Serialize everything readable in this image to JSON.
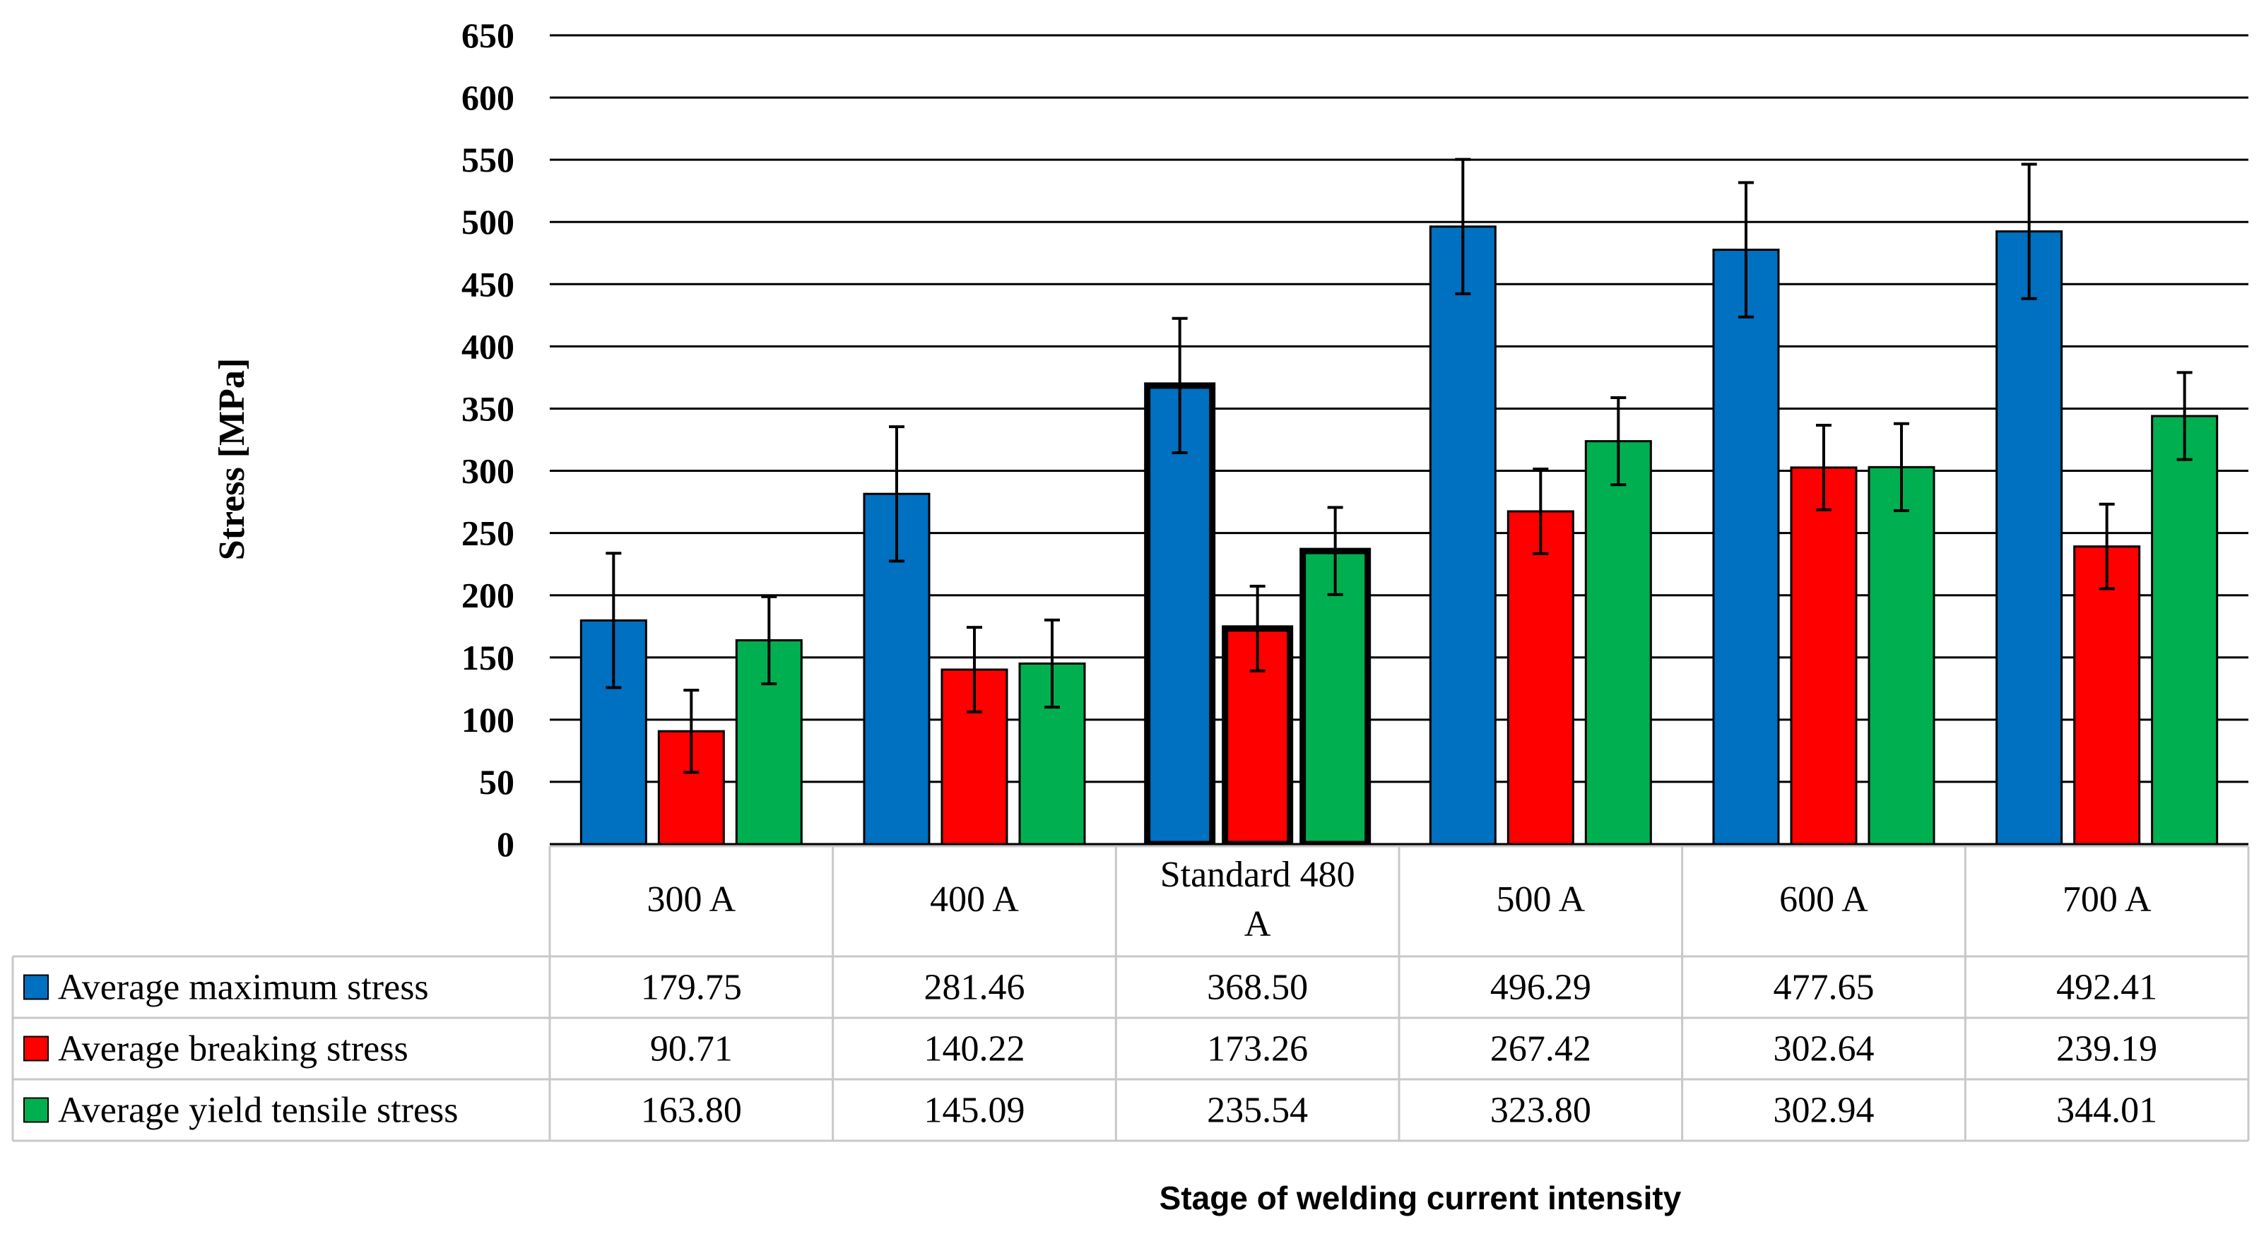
{
  "chart_data": {
    "type": "bar",
    "ylabel": "Stress [MPa]",
    "xlabel": "Stage of welding current intensity",
    "ylim": [
      0,
      650
    ],
    "yticks": [
      0,
      50,
      100,
      150,
      200,
      250,
      300,
      350,
      400,
      450,
      500,
      550,
      600,
      650
    ],
    "categories": [
      "300 A",
      "400 A",
      "Standard 480 A",
      "500 A",
      "600 A",
      "700 A"
    ],
    "highlighted_category": "Standard 480 A",
    "series": [
      {
        "name": "Average maximum stress",
        "color": "#0070C0",
        "values": [
          179.75,
          281.46,
          368.5,
          496.29,
          477.65,
          492.41
        ],
        "labels": [
          "179.75",
          "281.46",
          "368.50",
          "496.29",
          "477.65",
          "492.41"
        ],
        "error": [
          54,
          54,
          54,
          54,
          54,
          54
        ]
      },
      {
        "name": "Average breaking stress",
        "color": "#FF0000",
        "values": [
          90.71,
          140.22,
          173.26,
          267.42,
          302.64,
          239.19
        ],
        "labels": [
          "90.71",
          "140.22",
          "173.26",
          "267.42",
          "302.64",
          "239.19"
        ],
        "error": [
          33,
          34,
          34,
          34,
          34,
          34
        ]
      },
      {
        "name": "Average yield tensile stress",
        "color": "#00B050",
        "values": [
          163.8,
          145.09,
          235.54,
          323.8,
          302.94,
          344.01
        ],
        "labels": [
          "163.80",
          "145.09",
          "235.54",
          "323.80",
          "302.94",
          "344.01"
        ],
        "error": [
          35,
          35,
          35,
          35,
          35,
          35
        ]
      }
    ]
  }
}
